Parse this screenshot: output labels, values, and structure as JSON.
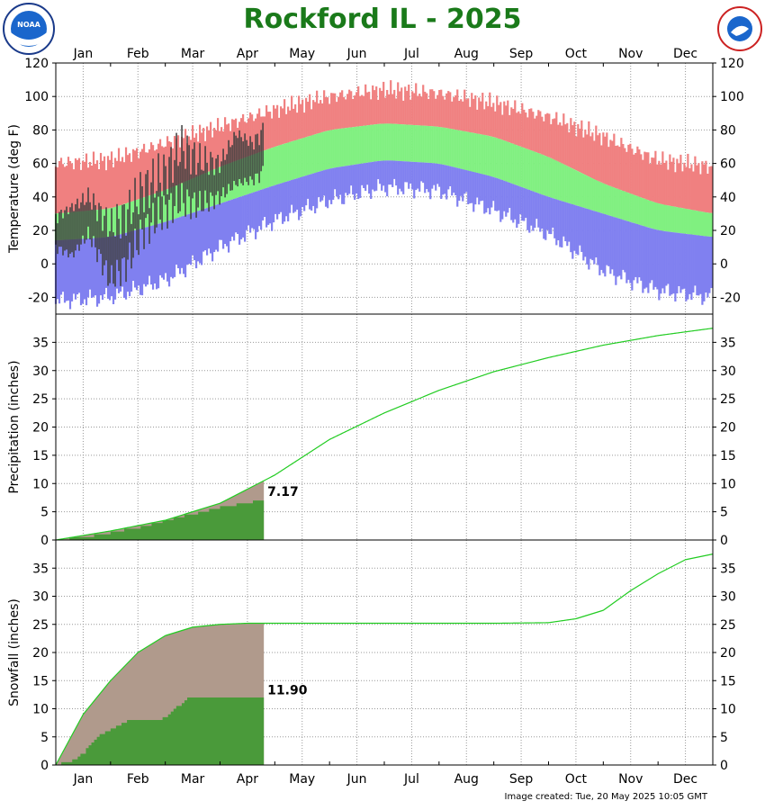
{
  "title": "Rockford IL - 2025",
  "credit": "Image created: Tue, 20 May 2025 10:05 GMT",
  "logos": {
    "left": "noaa-logo",
    "right": "national-weather-service-logo"
  },
  "colors": {
    "title": "#1a7a1a",
    "record_band": "#f08080",
    "normal_band": "#80f080",
    "record_low_band": "#8080f0",
    "observed": "#404040",
    "normal_line": "#22cc22",
    "accumulated_fill": "#b09a8c",
    "observed_fill": "#4a9a3a"
  },
  "months": [
    "Jan",
    "Feb",
    "Mar",
    "Apr",
    "May",
    "Jun",
    "Jul",
    "Aug",
    "Sep",
    "Oct",
    "Nov",
    "Dec"
  ],
  "chart_data": [
    {
      "type": "area",
      "ylabel": "Temperature (deg F)",
      "ylim": [
        -30,
        120
      ],
      "yticks": [
        -20,
        0,
        20,
        40,
        60,
        80,
        100,
        120
      ],
      "grid": true,
      "series": [
        {
          "name": "record_high",
          "months": [
            1,
            2,
            3,
            4,
            5,
            6,
            7,
            8,
            9,
            10,
            11,
            12,
            13
          ],
          "values": [
            60,
            62,
            72,
            82,
            92,
            100,
            104,
            102,
            96,
            88,
            76,
            62,
            58
          ]
        },
        {
          "name": "normal_high",
          "months": [
            1,
            2,
            3,
            4,
            5,
            6,
            7,
            8,
            9,
            10,
            11,
            12,
            13
          ],
          "values": [
            30,
            33,
            44,
            58,
            70,
            80,
            84,
            82,
            76,
            64,
            48,
            36,
            30
          ]
        },
        {
          "name": "normal_low",
          "months": [
            1,
            2,
            3,
            4,
            5,
            6,
            7,
            8,
            9,
            10,
            11,
            12,
            13
          ],
          "values": [
            14,
            16,
            25,
            36,
            47,
            57,
            62,
            60,
            52,
            40,
            30,
            20,
            16
          ]
        },
        {
          "name": "record_low",
          "months": [
            1,
            2,
            3,
            4,
            5,
            6,
            7,
            8,
            9,
            10,
            11,
            12,
            13
          ],
          "values": [
            -22,
            -20,
            -10,
            10,
            26,
            38,
            46,
            44,
            32,
            18,
            -4,
            -16,
            -20
          ]
        },
        {
          "name": "observed_high",
          "months": [
            1.0,
            1.3,
            1.6,
            2.0,
            2.3,
            2.6,
            3.0,
            3.3,
            3.6,
            4.0,
            4.3,
            4.6,
            4.8
          ],
          "values": [
            28,
            34,
            40,
            22,
            30,
            45,
            54,
            70,
            62,
            60,
            78,
            72,
            80
          ]
        },
        {
          "name": "observed_low",
          "months": [
            1.0,
            1.3,
            1.6,
            2.0,
            2.3,
            2.6,
            3.0,
            3.3,
            3.6,
            4.0,
            4.3,
            4.6,
            4.8
          ],
          "values": [
            10,
            5,
            18,
            -10,
            0,
            20,
            32,
            38,
            35,
            40,
            48,
            50,
            55
          ]
        }
      ]
    },
    {
      "type": "line",
      "ylabel": "Precipitation (inches)",
      "ylim": [
        0,
        40
      ],
      "yticks": [
        0,
        5,
        10,
        15,
        20,
        25,
        30,
        35
      ],
      "grid": true,
      "series": [
        {
          "name": "normal",
          "months": [
            1,
            2,
            3,
            4,
            5,
            6,
            7,
            8,
            9,
            10,
            11,
            12,
            13
          ],
          "values": [
            0,
            1.6,
            3.5,
            6.5,
            11.5,
            17.8,
            22.5,
            26.5,
            29.8,
            32.3,
            34.5,
            36.2,
            37.5
          ]
        },
        {
          "name": "observed",
          "months": [
            1.0,
            1.5,
            2.0,
            2.5,
            3.0,
            3.5,
            4.0,
            4.5,
            4.8
          ],
          "values": [
            0,
            0.5,
            1.3,
            2.2,
            3.5,
            4.6,
            5.8,
            6.6,
            7.17
          ]
        }
      ],
      "annotations": [
        "7.17"
      ]
    },
    {
      "type": "line",
      "ylabel": "Snowfall (inches)",
      "ylim": [
        0,
        40
      ],
      "yticks": [
        0,
        5,
        10,
        15,
        20,
        25,
        30,
        35
      ],
      "grid": true,
      "series": [
        {
          "name": "normal",
          "months": [
            1,
            1.5,
            2,
            2.5,
            3,
            3.5,
            4,
            4.5,
            5,
            6,
            7,
            8,
            9,
            10,
            10.5,
            11,
            11.5,
            12,
            12.5,
            13
          ],
          "values": [
            0,
            9,
            15,
            20,
            23,
            24.5,
            25,
            25.2,
            25.2,
            25.2,
            25.2,
            25.2,
            25.2,
            25.3,
            26,
            27.5,
            31,
            34,
            36.5,
            37.5
          ]
        },
        {
          "name": "observed",
          "months": [
            1.0,
            1.3,
            1.5,
            1.8,
            2.3,
            2.9,
            3.4,
            4.8
          ],
          "values": [
            0,
            0.8,
            2.2,
            5.5,
            7.8,
            7.9,
            11.9,
            11.9
          ]
        }
      ],
      "annotations": [
        "11.90"
      ]
    }
  ]
}
